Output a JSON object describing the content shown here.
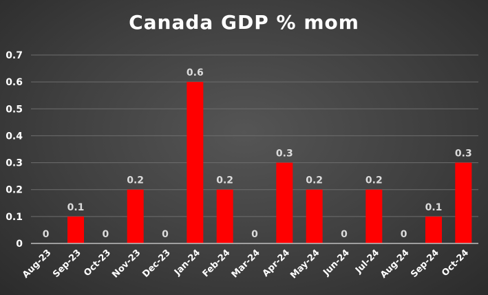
{
  "chart_data": {
    "type": "bar",
    "title": "Canada GDP % mom",
    "xlabel": "",
    "ylabel": "",
    "categories": [
      "Aug-23",
      "Sep-23",
      "Oct-23",
      "Nov-23",
      "Dec-23",
      "Jan-24",
      "Feb-24",
      "Mar-24",
      "Apr-24",
      "May-24",
      "Jun-24",
      "Jul-24",
      "Aug-24",
      "Sep-24",
      "Oct-24"
    ],
    "values": [
      0,
      0.1,
      0,
      0.2,
      0,
      0.6,
      0.2,
      0,
      0.3,
      0.2,
      0,
      0.2,
      0,
      0.1,
      0.3
    ],
    "data_labels": [
      "0",
      "0.1",
      "0",
      "0.2",
      "0",
      "0.6",
      "0.2",
      "0",
      "0.3",
      "0.2",
      "0",
      "0.2",
      "0",
      "0.1",
      "0.3"
    ],
    "ylim": [
      0,
      0.7
    ],
    "yticks": [
      0,
      0.1,
      0.2,
      0.3,
      0.4,
      0.5,
      0.6,
      0.7
    ],
    "ytick_labels": [
      "0",
      "0.1",
      "0.2",
      "0.3",
      "0.4",
      "0.5",
      "0.6",
      "0.7"
    ],
    "grid": true,
    "legend": "none",
    "colors": {
      "bar": "#ff0000",
      "grid": "#6e6e6e",
      "axis": "#bfbfbf",
      "text": "#ffffff"
    }
  }
}
